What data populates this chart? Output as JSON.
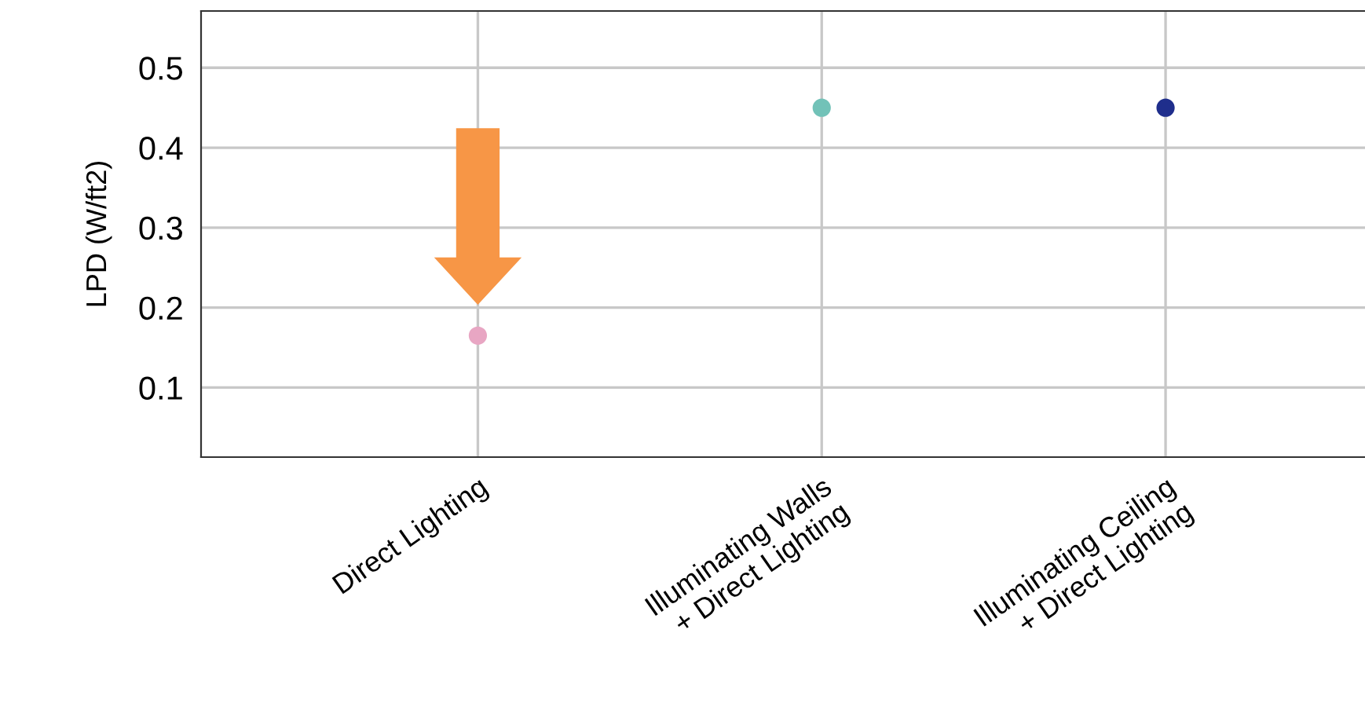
{
  "chart_data": {
    "type": "scatter",
    "ylabel": "LPD (W/ft2)",
    "categories": [
      "Direct Lighting",
      "Illuminating Walls\n+ Direct Lighting",
      "Illuminating Ceiling\n+ Direct Lighting"
    ],
    "values": [
      0.165,
      0.45,
      0.45
    ],
    "colors": [
      "#e8a6c3",
      "#72c2b8",
      "#1f2e8c"
    ],
    "ylim": [
      0.013,
      0.571
    ],
    "yticks": [
      0.1,
      0.2,
      0.3,
      0.4,
      0.5
    ],
    "grid": true,
    "marker": "circle",
    "legend": false
  }
}
